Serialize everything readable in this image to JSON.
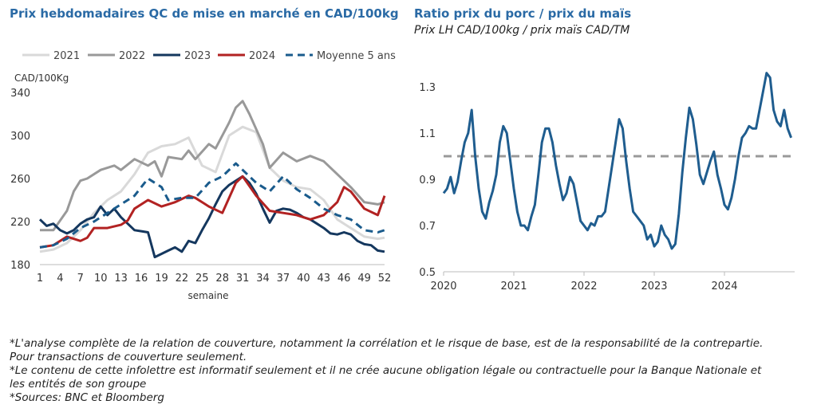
{
  "left_title": "Prix hebdomadaires QC de mise en marché en CAD/100kg",
  "right_title": "Ratio prix du porc / prix du maïs",
  "right_subtitle": "Prix LH CAD/100kg / prix maïs CAD/TM",
  "notes": [
    "*L'analyse complète de la relation de couverture, notamment la corrélation et le risque de base, est de la responsabilité de la contrepartie.",
    "Pour transactions de couverture seulement.",
    "*Le contenu de cette infolettre est informatif seulement et il ne crée aucune obligation légale ou contractuelle pour la Banque Nationale et",
    "les entités de son groupe",
    "*Sources: BNC et Bloomberg"
  ],
  "chart_data": [
    {
      "type": "line",
      "ylabel": "CAD/100Kg",
      "xlabel": "semaine",
      "ylim": [
        180,
        340
      ],
      "yticks": [
        180,
        220,
        260,
        300,
        340
      ],
      "xlim": [
        1,
        52
      ],
      "xticks": [
        1,
        4,
        7,
        10,
        13,
        16,
        19,
        22,
        25,
        28,
        31,
        34,
        37,
        40,
        43,
        46,
        49,
        52
      ],
      "legend_position": "top",
      "series": [
        {
          "name": "2021",
          "color": "#d9d9d9",
          "style": "solid",
          "x": [
            1,
            3,
            5,
            7,
            9,
            11,
            13,
            15,
            17,
            19,
            21,
            23,
            25,
            27,
            29,
            31,
            33,
            35,
            37,
            39,
            41,
            43,
            45,
            47,
            49,
            51,
            52
          ],
          "y": [
            192,
            194,
            200,
            212,
            228,
            240,
            248,
            264,
            284,
            290,
            292,
            298,
            272,
            266,
            300,
            308,
            303,
            270,
            258,
            252,
            250,
            240,
            222,
            214,
            206,
            204,
            205
          ]
        },
        {
          "name": "2022",
          "color": "#999999",
          "style": "solid",
          "x": [
            1,
            3,
            5,
            6,
            7,
            8,
            10,
            12,
            13,
            15,
            17,
            18,
            19,
            20,
            22,
            23,
            24,
            26,
            27,
            29,
            30,
            31,
            32,
            34,
            35,
            37,
            39,
            41,
            43,
            45,
            47,
            49,
            51,
            52
          ],
          "y": [
            212,
            212,
            230,
            248,
            258,
            260,
            268,
            272,
            268,
            278,
            272,
            276,
            262,
            280,
            278,
            286,
            278,
            292,
            288,
            312,
            326,
            332,
            320,
            292,
            270,
            284,
            276,
            281,
            276,
            264,
            252,
            238,
            236,
            238
          ]
        },
        {
          "name": "2023",
          "color": "#14375e",
          "style": "solid",
          "x": [
            1,
            2,
            3,
            4,
            5,
            6,
            7,
            8,
            9,
            10,
            11,
            12,
            13,
            14,
            15,
            16,
            17,
            18,
            19,
            20,
            21,
            22,
            23,
            24,
            25,
            26,
            27,
            28,
            29,
            30,
            31,
            32,
            33,
            34,
            35,
            36,
            37,
            38,
            39,
            40,
            41,
            42,
            43,
            44,
            45,
            46,
            47,
            48,
            49,
            50,
            51,
            52
          ],
          "y": [
            222,
            216,
            218,
            212,
            209,
            212,
            218,
            222,
            224,
            234,
            226,
            232,
            224,
            218,
            212,
            211,
            210,
            187,
            190,
            193,
            196,
            192,
            202,
            200,
            212,
            223,
            236,
            248,
            254,
            258,
            262,
            256,
            246,
            232,
            219,
            230,
            232,
            231,
            228,
            224,
            222,
            218,
            214,
            209,
            208,
            210,
            208,
            202,
            199,
            198,
            193,
            192
          ]
        },
        {
          "name": "2024",
          "color": "#b22222",
          "style": "solid",
          "x": [
            1,
            3,
            5,
            7,
            8,
            9,
            11,
            13,
            14,
            15,
            17,
            19,
            21,
            23,
            24,
            26,
            28,
            30,
            31,
            33,
            35,
            37,
            39,
            41,
            43,
            45,
            46,
            47,
            49,
            51,
            52
          ],
          "y": [
            196,
            198,
            206,
            202,
            205,
            214,
            214,
            217,
            221,
            232,
            240,
            234,
            238,
            244,
            242,
            234,
            228,
            256,
            262,
            244,
            230,
            228,
            226,
            222,
            226,
            238,
            252,
            248,
            232,
            226,
            244
          ]
        },
        {
          "name": "Moyenne 5 ans",
          "color": "#1a5b8c",
          "style": "dashed",
          "x": [
            1,
            3,
            5,
            7,
            9,
            11,
            13,
            15,
            17,
            19,
            20,
            22,
            24,
            26,
            28,
            30,
            31,
            33,
            35,
            37,
            39,
            41,
            43,
            45,
            47,
            49,
            51,
            52
          ],
          "y": [
            196,
            198,
            204,
            214,
            220,
            228,
            236,
            244,
            260,
            252,
            240,
            242,
            242,
            256,
            262,
            274,
            268,
            256,
            248,
            262,
            250,
            242,
            232,
            226,
            222,
            212,
            210,
            212
          ]
        }
      ]
    },
    {
      "type": "line",
      "ylim": [
        0.5,
        1.4
      ],
      "yticks": [
        0.5,
        0.7,
        0.9,
        1.1,
        1.3
      ],
      "xlim": [
        2020.0,
        2025.0
      ],
      "xticks": [
        2020,
        2021,
        2022,
        2023,
        2024
      ],
      "reference_line": {
        "y": 1.0,
        "color": "#999999",
        "style": "dashed"
      },
      "series": [
        {
          "color": "#1f5d8f",
          "x": [
            2020.0,
            2020.05,
            2020.1,
            2020.15,
            2020.2,
            2020.25,
            2020.3,
            2020.35,
            2020.4,
            2020.45,
            2020.5,
            2020.55,
            2020.6,
            2020.65,
            2020.7,
            2020.75,
            2020.8,
            2020.85,
            2020.9,
            2020.95,
            2021.0,
            2021.05,
            2021.1,
            2021.15,
            2021.2,
            2021.25,
            2021.3,
            2021.35,
            2021.4,
            2021.45,
            2021.5,
            2021.55,
            2021.6,
            2021.65,
            2021.7,
            2021.75,
            2021.8,
            2021.85,
            2021.9,
            2021.95,
            2022.0,
            2022.05,
            2022.1,
            2022.15,
            2022.2,
            2022.25,
            2022.3,
            2022.35,
            2022.4,
            2022.45,
            2022.5,
            2022.55,
            2022.6,
            2022.65,
            2022.7,
            2022.75,
            2022.8,
            2022.85,
            2022.9,
            2022.95,
            2023.0,
            2023.05,
            2023.1,
            2023.15,
            2023.2,
            2023.25,
            2023.3,
            2023.35,
            2023.4,
            2023.45,
            2023.5,
            2023.55,
            2023.6,
            2023.65,
            2023.7,
            2023.75,
            2023.8,
            2023.85,
            2023.9,
            2023.95,
            2024.0,
            2024.05,
            2024.1,
            2024.15,
            2024.2,
            2024.25,
            2024.3,
            2024.35,
            2024.4,
            2024.45,
            2024.5,
            2024.55,
            2024.6,
            2024.65,
            2024.7,
            2024.75,
            2024.8,
            2024.85,
            2024.9,
            2024.95
          ],
          "y": [
            0.84,
            0.86,
            0.91,
            0.84,
            0.89,
            0.98,
            1.06,
            1.1,
            1.2,
            1.0,
            0.86,
            0.76,
            0.73,
            0.8,
            0.85,
            0.92,
            1.06,
            1.13,
            1.1,
            0.98,
            0.86,
            0.76,
            0.7,
            0.7,
            0.68,
            0.74,
            0.79,
            0.92,
            1.06,
            1.12,
            1.12,
            1.06,
            0.96,
            0.88,
            0.81,
            0.84,
            0.91,
            0.88,
            0.8,
            0.72,
            0.7,
            0.68,
            0.71,
            0.7,
            0.74,
            0.74,
            0.76,
            0.86,
            0.96,
            1.06,
            1.16,
            1.12,
            0.98,
            0.86,
            0.76,
            0.74,
            0.72,
            0.7,
            0.64,
            0.66,
            0.61,
            0.63,
            0.7,
            0.66,
            0.64,
            0.6,
            0.62,
            0.75,
            0.93,
            1.08,
            1.21,
            1.16,
            1.05,
            0.92,
            0.88,
            0.93,
            0.98,
            1.02,
            0.92,
            0.86,
            0.79,
            0.77,
            0.82,
            0.9,
            1.0,
            1.08,
            1.1,
            1.13,
            1.12,
            1.12,
            1.2,
            1.28,
            1.36,
            1.34,
            1.2,
            1.15,
            1.13,
            1.2,
            1.12,
            1.08
          ]
        }
      ]
    }
  ]
}
